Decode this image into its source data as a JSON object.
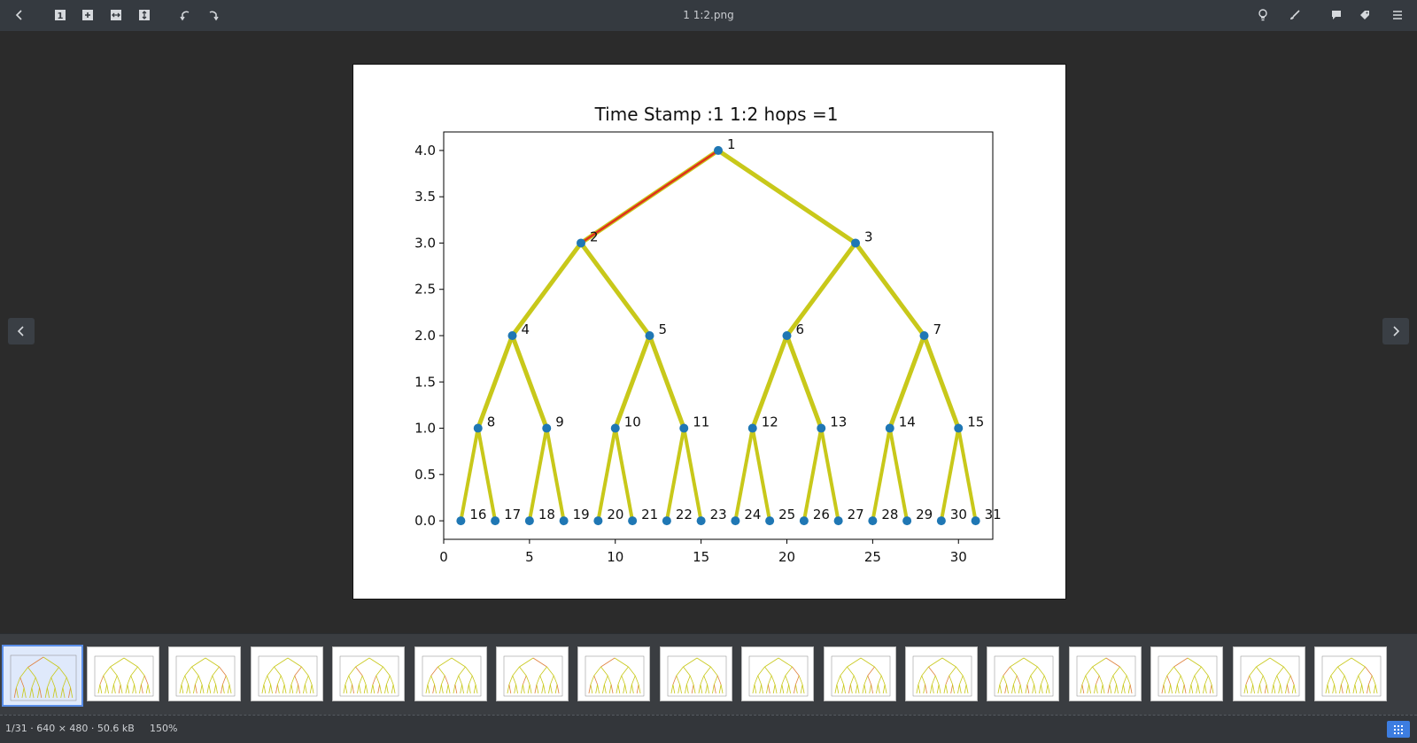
{
  "window": {
    "title": "1 1:2.png"
  },
  "toolbar": {
    "left_icons": [
      "back-icon",
      "actual-size-icon",
      "fit-window-icon",
      "fit-width-icon",
      "fit-height-icon",
      "rotate-left-icon",
      "rotate-right-icon"
    ],
    "right_icons": [
      "bulb-icon",
      "brush-icon",
      "comment-icon",
      "tag-icon",
      "menu-icon"
    ]
  },
  "status": {
    "position": "1/31",
    "dimensions": "640 × 480",
    "size": "50.6 kB",
    "separator": " · ",
    "zoom": "150%"
  },
  "filmstrip": {
    "count": 17,
    "selected_index": 0
  },
  "colors": {
    "edge": "#c8c81a",
    "highlight": "#e0301e",
    "node": "#1f77b4",
    "accent": "#3d7de0"
  },
  "chart_data": {
    "type": "scatter",
    "title": "Time Stamp :1 1:2 hops =1",
    "xlabel": "",
    "ylabel": "",
    "xlim": [
      0,
      32
    ],
    "ylim": [
      -0.2,
      4.2
    ],
    "xticks": [
      0,
      5,
      10,
      15,
      20,
      25,
      30
    ],
    "yticks": [
      0.0,
      0.5,
      1.0,
      1.5,
      2.0,
      2.5,
      3.0,
      3.5,
      4.0
    ],
    "ytick_labels": [
      "0.0",
      "0.5",
      "1.0",
      "1.5",
      "2.0",
      "2.5",
      "3.0",
      "3.5",
      "4.0"
    ],
    "nodes": [
      {
        "id": "1",
        "x": 16,
        "y": 4
      },
      {
        "id": "2",
        "x": 8,
        "y": 3
      },
      {
        "id": "3",
        "x": 24,
        "y": 3
      },
      {
        "id": "4",
        "x": 4,
        "y": 2
      },
      {
        "id": "5",
        "x": 12,
        "y": 2
      },
      {
        "id": "6",
        "x": 20,
        "y": 2
      },
      {
        "id": "7",
        "x": 28,
        "y": 2
      },
      {
        "id": "8",
        "x": 2,
        "y": 1
      },
      {
        "id": "9",
        "x": 6,
        "y": 1
      },
      {
        "id": "10",
        "x": 10,
        "y": 1
      },
      {
        "id": "11",
        "x": 14,
        "y": 1
      },
      {
        "id": "12",
        "x": 18,
        "y": 1
      },
      {
        "id": "13",
        "x": 22,
        "y": 1
      },
      {
        "id": "14",
        "x": 26,
        "y": 1
      },
      {
        "id": "15",
        "x": 30,
        "y": 1
      },
      {
        "id": "16",
        "x": 1,
        "y": 0
      },
      {
        "id": "17",
        "x": 3,
        "y": 0
      },
      {
        "id": "18",
        "x": 5,
        "y": 0
      },
      {
        "id": "19",
        "x": 7,
        "y": 0
      },
      {
        "id": "20",
        "x": 9,
        "y": 0
      },
      {
        "id": "21",
        "x": 11,
        "y": 0
      },
      {
        "id": "22",
        "x": 13,
        "y": 0
      },
      {
        "id": "23",
        "x": 15,
        "y": 0
      },
      {
        "id": "24",
        "x": 17,
        "y": 0
      },
      {
        "id": "25",
        "x": 19,
        "y": 0
      },
      {
        "id": "26",
        "x": 21,
        "y": 0
      },
      {
        "id": "27",
        "x": 23,
        "y": 0
      },
      {
        "id": "28",
        "x": 25,
        "y": 0
      },
      {
        "id": "29",
        "x": 27,
        "y": 0
      },
      {
        "id": "30",
        "x": 29,
        "y": 0
      },
      {
        "id": "31",
        "x": 31,
        "y": 0
      }
    ],
    "edges": [
      [
        "1",
        "2"
      ],
      [
        "1",
        "3"
      ],
      [
        "2",
        "4"
      ],
      [
        "2",
        "5"
      ],
      [
        "3",
        "6"
      ],
      [
        "3",
        "7"
      ],
      [
        "4",
        "8"
      ],
      [
        "4",
        "9"
      ],
      [
        "5",
        "10"
      ],
      [
        "5",
        "11"
      ],
      [
        "6",
        "12"
      ],
      [
        "6",
        "13"
      ],
      [
        "7",
        "14"
      ],
      [
        "7",
        "15"
      ],
      [
        "8",
        "16"
      ],
      [
        "8",
        "17"
      ],
      [
        "9",
        "18"
      ],
      [
        "9",
        "19"
      ],
      [
        "10",
        "20"
      ],
      [
        "10",
        "21"
      ],
      [
        "11",
        "22"
      ],
      [
        "11",
        "23"
      ],
      [
        "12",
        "24"
      ],
      [
        "12",
        "25"
      ],
      [
        "13",
        "26"
      ],
      [
        "13",
        "27"
      ],
      [
        "14",
        "28"
      ],
      [
        "14",
        "29"
      ],
      [
        "15",
        "30"
      ],
      [
        "15",
        "31"
      ]
    ],
    "highlighted_edges": [
      [
        "1",
        "2"
      ]
    ]
  }
}
